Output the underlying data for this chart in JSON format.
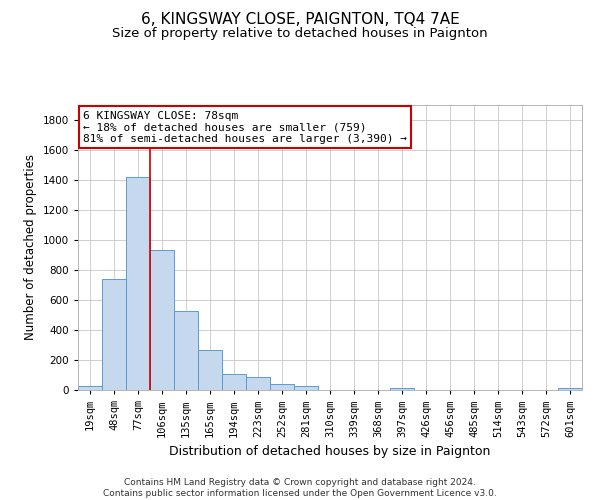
{
  "title1": "6, KINGSWAY CLOSE, PAIGNTON, TQ4 7AE",
  "title2": "Size of property relative to detached houses in Paignton",
  "xlabel": "Distribution of detached houses by size in Paignton",
  "ylabel": "Number of detached properties",
  "categories": [
    "19sqm",
    "48sqm",
    "77sqm",
    "106sqm",
    "135sqm",
    "165sqm",
    "194sqm",
    "223sqm",
    "252sqm",
    "281sqm",
    "310sqm",
    "339sqm",
    "368sqm",
    "397sqm",
    "426sqm",
    "456sqm",
    "485sqm",
    "514sqm",
    "543sqm",
    "572sqm",
    "601sqm"
  ],
  "values": [
    25,
    740,
    1420,
    935,
    530,
    265,
    105,
    90,
    40,
    25,
    0,
    0,
    0,
    15,
    0,
    0,
    0,
    0,
    0,
    0,
    15
  ],
  "bar_color": "#c5d8ed",
  "bar_edge_color": "#5b9bd5",
  "bar_edge_width": 0.7,
  "grid_color": "#c8c8c8",
  "annotation_text": "6 KINGSWAY CLOSE: 78sqm\n← 18% of detached houses are smaller (759)\n81% of semi-detached houses are larger (3,390) →",
  "annotation_box_color": "#cc0000",
  "vline_color": "#cc0000",
  "vline_x_index": 2,
  "ylim": [
    0,
    1900
  ],
  "yticks": [
    0,
    200,
    400,
    600,
    800,
    1000,
    1200,
    1400,
    1600,
    1800
  ],
  "footer": "Contains HM Land Registry data © Crown copyright and database right 2024.\nContains public sector information licensed under the Open Government Licence v3.0.",
  "title1_fontsize": 11,
  "title2_fontsize": 9.5,
  "xlabel_fontsize": 9,
  "ylabel_fontsize": 8.5,
  "tick_fontsize": 7.5,
  "footer_fontsize": 6.5,
  "annotation_fontsize": 8
}
